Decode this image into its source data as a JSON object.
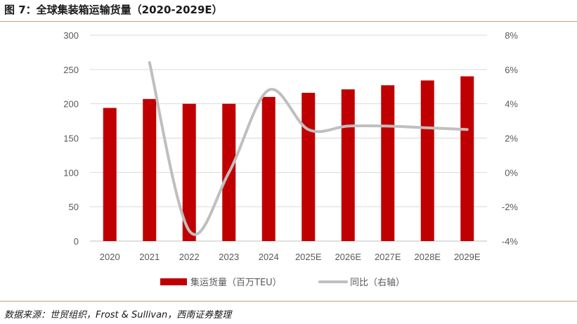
{
  "figure": {
    "title": "图 7：全球集装箱运输货量（2020-2029E）",
    "source": "数据来源：世贸组织，Frost & Sullivan，西南证券整理"
  },
  "colors": {
    "bar": "#c00000",
    "line": "#bfbfbf",
    "rule": "#c9a46a",
    "grid": "#d9d9d9"
  },
  "chart_data": {
    "type": "bar",
    "categories": [
      "2020",
      "2021",
      "2022",
      "2023",
      "2024",
      "2025E",
      "2026E",
      "2027E",
      "2028E",
      "2029E"
    ],
    "series": [
      {
        "name": "集运货量（百万TEU）",
        "type": "bar",
        "axis": "left",
        "values": [
          194,
          207,
          200,
          200,
          210,
          216,
          221,
          227,
          234,
          240
        ]
      },
      {
        "name": "同比（右轴）",
        "type": "line",
        "axis": "right",
        "smooth": true,
        "values": [
          null,
          6.4,
          -3.4,
          0.0,
          4.8,
          2.5,
          2.7,
          2.7,
          2.6,
          2.5
        ]
      }
    ],
    "ylim_left": [
      0,
      300
    ],
    "yticks_left": [
      "0",
      "50",
      "100",
      "150",
      "200",
      "250",
      "300"
    ],
    "ylim_right": [
      -4,
      8
    ],
    "yticks_right": [
      "-4%",
      "-2%",
      "0%",
      "2%",
      "4%",
      "6%",
      "8%"
    ],
    "grid": true,
    "legend": "bottom"
  }
}
